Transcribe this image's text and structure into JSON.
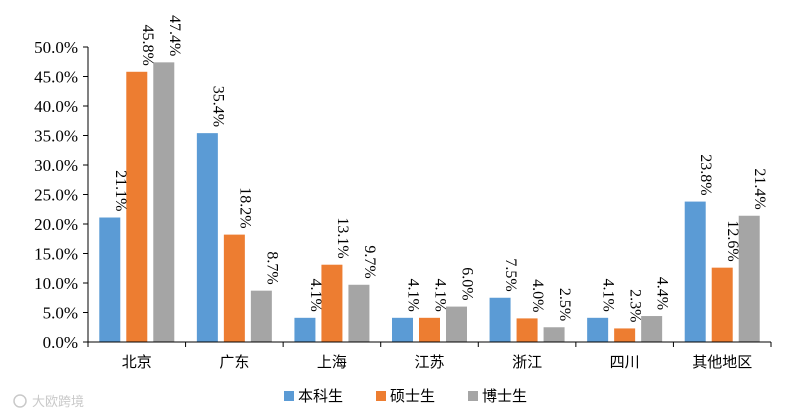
{
  "chart_data": {
    "type": "bar",
    "categories": [
      "北京",
      "广东",
      "上海",
      "江苏",
      "浙江",
      "四川",
      "其他地区"
    ],
    "series": [
      {
        "name": "本科生",
        "color": "#5b9bd5",
        "values": [
          21.1,
          35.4,
          4.1,
          4.1,
          7.5,
          4.1,
          23.8
        ],
        "labels": [
          "21.1%",
          "35.4%",
          "4.1%",
          "4.1%",
          "7.5%",
          "4.1%",
          "23.8%"
        ]
      },
      {
        "name": "硕士生",
        "color": "#ed7d31",
        "values": [
          45.8,
          18.2,
          13.1,
          4.1,
          4.0,
          2.3,
          12.6
        ],
        "labels": [
          "45.8%",
          "18.2%",
          "13.1%",
          "4.1%",
          "4.0%",
          "2.3%",
          "12.6%"
        ]
      },
      {
        "name": "博士生",
        "color": "#a5a5a5",
        "values": [
          47.4,
          8.7,
          9.7,
          6.0,
          2.5,
          4.4,
          21.4
        ],
        "labels": [
          "47.4%",
          "8.7%",
          "9.7%",
          "6.0%",
          "2.5%",
          "4.4%",
          "21.4%"
        ]
      }
    ],
    "yticks": [
      "0.0%",
      "5.0%",
      "10.0%",
      "15.0%",
      "20.0%",
      "25.0%",
      "30.0%",
      "35.0%",
      "40.0%",
      "45.0%",
      "50.0%"
    ],
    "ylim": [
      0,
      50
    ],
    "grid": false,
    "legend_position": "bottom-center",
    "title": "",
    "xlabel": "",
    "ylabel": ""
  },
  "watermark": "大欧跨境"
}
